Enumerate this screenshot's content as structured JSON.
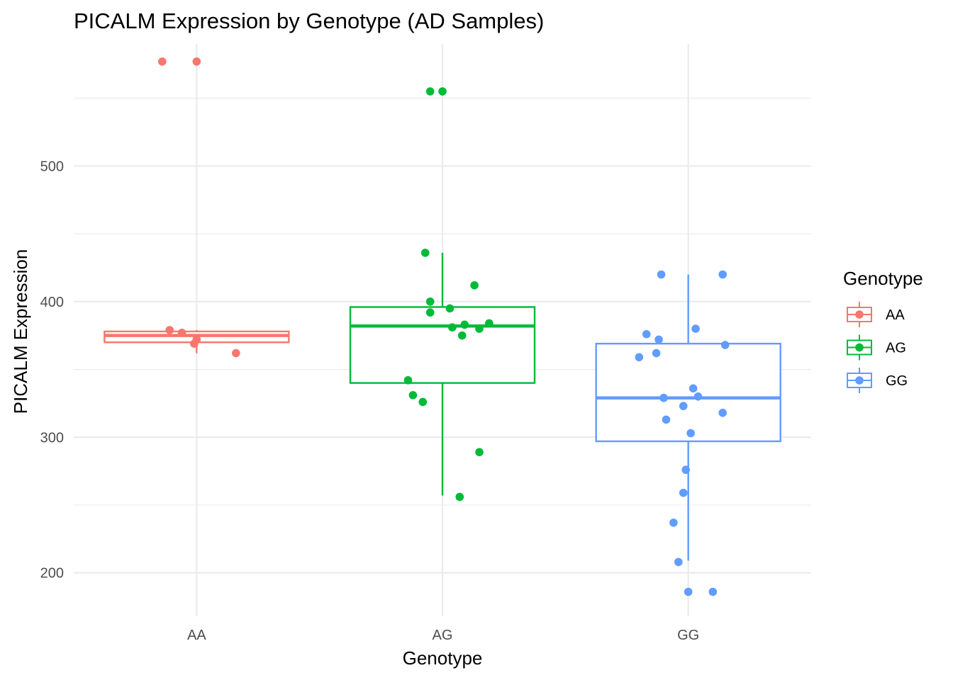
{
  "chart_data": {
    "type": "box",
    "title": "PICALM Expression by Genotype (AD Samples)",
    "xlabel": "Genotype",
    "ylabel": "PICALM Expression",
    "categories": [
      "AA",
      "AG",
      "GG"
    ],
    "ylim": [
      168,
      590
    ],
    "yticks": [
      200,
      300,
      400,
      500
    ],
    "grid": true,
    "legend": {
      "title": "Genotype",
      "position": "right",
      "entries": [
        "AA",
        "AG",
        "GG"
      ]
    },
    "colors": {
      "AA": "#F8766D",
      "AG": "#00BA38",
      "GG": "#619CFF"
    },
    "boxes": [
      {
        "category": "AA",
        "whisker_low": 362,
        "q1": 370,
        "median": 375,
        "q3": 378,
        "whisker_high": 379
      },
      {
        "category": "AG",
        "whisker_low": 257,
        "q1": 340,
        "median": 382,
        "q3": 396,
        "whisker_high": 436
      },
      {
        "category": "GG",
        "whisker_low": 209,
        "q1": 297,
        "median": 329,
        "q3": 369,
        "whisker_high": 420
      }
    ],
    "points": [
      {
        "category": "AA",
        "jitter": -0.14,
        "y": 577
      },
      {
        "category": "AA",
        "jitter": 0.0,
        "y": 577
      },
      {
        "category": "AA",
        "jitter": -0.11,
        "y": 379
      },
      {
        "category": "AA",
        "jitter": -0.06,
        "y": 377
      },
      {
        "category": "AA",
        "jitter": 0.0,
        "y": 372
      },
      {
        "category": "AA",
        "jitter": -0.01,
        "y": 369
      },
      {
        "category": "AA",
        "jitter": 0.16,
        "y": 362
      },
      {
        "category": "AG",
        "jitter": -0.05,
        "y": 555
      },
      {
        "category": "AG",
        "jitter": 0.0,
        "y": 555
      },
      {
        "category": "AG",
        "jitter": -0.07,
        "y": 436
      },
      {
        "category": "AG",
        "jitter": 0.13,
        "y": 412
      },
      {
        "category": "AG",
        "jitter": -0.05,
        "y": 400
      },
      {
        "category": "AG",
        "jitter": 0.03,
        "y": 395
      },
      {
        "category": "AG",
        "jitter": -0.05,
        "y": 392
      },
      {
        "category": "AG",
        "jitter": 0.19,
        "y": 384
      },
      {
        "category": "AG",
        "jitter": 0.09,
        "y": 383
      },
      {
        "category": "AG",
        "jitter": 0.04,
        "y": 381
      },
      {
        "category": "AG",
        "jitter": 0.15,
        "y": 380
      },
      {
        "category": "AG",
        "jitter": 0.08,
        "y": 375
      },
      {
        "category": "AG",
        "jitter": -0.14,
        "y": 342
      },
      {
        "category": "AG",
        "jitter": -0.12,
        "y": 331
      },
      {
        "category": "AG",
        "jitter": -0.08,
        "y": 326
      },
      {
        "category": "AG",
        "jitter": 0.15,
        "y": 289
      },
      {
        "category": "AG",
        "jitter": 0.07,
        "y": 256
      },
      {
        "category": "GG",
        "jitter": -0.11,
        "y": 420
      },
      {
        "category": "GG",
        "jitter": 0.14,
        "y": 420
      },
      {
        "category": "GG",
        "jitter": 0.03,
        "y": 380
      },
      {
        "category": "GG",
        "jitter": -0.17,
        "y": 376
      },
      {
        "category": "GG",
        "jitter": -0.12,
        "y": 372
      },
      {
        "category": "GG",
        "jitter": 0.15,
        "y": 368
      },
      {
        "category": "GG",
        "jitter": -0.13,
        "y": 362
      },
      {
        "category": "GG",
        "jitter": -0.2,
        "y": 359
      },
      {
        "category": "GG",
        "jitter": 0.02,
        "y": 336
      },
      {
        "category": "GG",
        "jitter": 0.04,
        "y": 330
      },
      {
        "category": "GG",
        "jitter": -0.1,
        "y": 329
      },
      {
        "category": "GG",
        "jitter": -0.02,
        "y": 323
      },
      {
        "category": "GG",
        "jitter": 0.14,
        "y": 318
      },
      {
        "category": "GG",
        "jitter": -0.09,
        "y": 313
      },
      {
        "category": "GG",
        "jitter": 0.01,
        "y": 303
      },
      {
        "category": "GG",
        "jitter": -0.01,
        "y": 276
      },
      {
        "category": "GG",
        "jitter": -0.02,
        "y": 259
      },
      {
        "category": "GG",
        "jitter": -0.06,
        "y": 237
      },
      {
        "category": "GG",
        "jitter": -0.04,
        "y": 208
      },
      {
        "category": "GG",
        "jitter": 0.0,
        "y": 186
      },
      {
        "category": "GG",
        "jitter": 0.1,
        "y": 186
      }
    ]
  }
}
